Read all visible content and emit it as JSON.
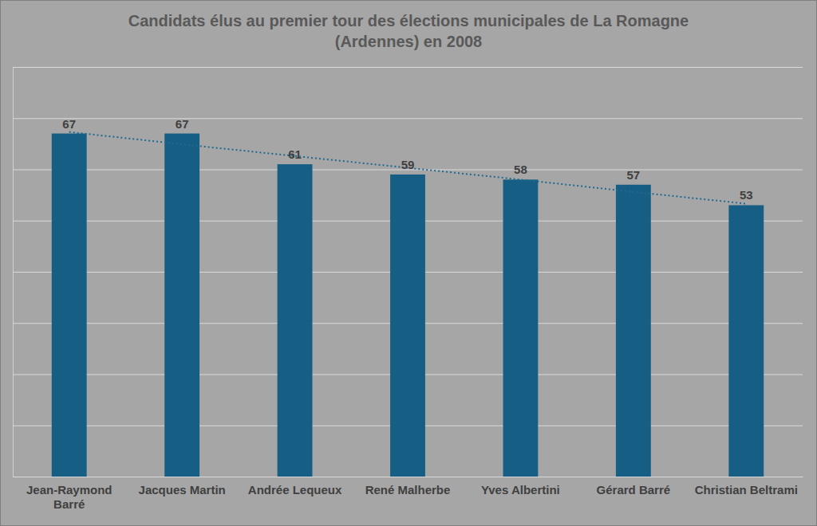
{
  "chart_data": {
    "type": "bar",
    "title": "Candidats élus au premier tour des élections municipales de La Romagne (Ardennes) en 2008",
    "categories": [
      "Jean-Raymond Barré",
      "Jacques Martin",
      "Andrée Lequeux",
      "René Malherbe",
      "Yves Albertini",
      "Gérard Barré",
      "Christian Beltrami"
    ],
    "series": [
      {
        "type": "bar",
        "color": "#175e84",
        "data_labels": true,
        "values": [
          67,
          67,
          61,
          59,
          58,
          57,
          53
        ]
      },
      {
        "type": "line",
        "line_style": "dotted",
        "color": "#1f6a8f",
        "values": [
          67.3,
          64.9,
          62.6,
          60.3,
          58,
          55.6,
          53.3
        ]
      }
    ],
    "ylim": [
      0,
      80
    ],
    "yticks": [
      0,
      10,
      20,
      30,
      40,
      50,
      60,
      70,
      80
    ],
    "grid": true,
    "tick_labels": false
  }
}
